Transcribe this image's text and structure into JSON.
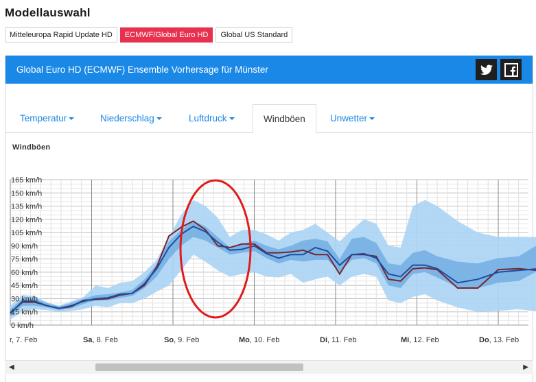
{
  "page": {
    "title": "Modellauswahl"
  },
  "models": [
    {
      "label": "Mitteleuropa Rapid Update HD",
      "active": false
    },
    {
      "label": "ECMWF/Global Euro HD",
      "active": true
    },
    {
      "label": "Global US Standard",
      "active": false
    }
  ],
  "panel": {
    "title": "Global Euro HD (ECMWF) Ensemble Vorhersage für Münster",
    "social": [
      "twitter-icon",
      "facebook-icon"
    ]
  },
  "tabs": [
    {
      "label": "Temperatur",
      "dropdown": true,
      "active": false
    },
    {
      "label": "Niederschlag",
      "dropdown": true,
      "active": false
    },
    {
      "label": "Luftdruck",
      "dropdown": true,
      "active": false
    },
    {
      "label": "Windböen",
      "dropdown": false,
      "active": true
    },
    {
      "label": "Unwetter",
      "dropdown": true,
      "active": false
    }
  ],
  "section": {
    "label": "Windböen"
  },
  "colors": {
    "header_blue": "#1a88e6",
    "active_model": "#e8314f",
    "band_outer": "#aad4f5",
    "band_mid": "#6ba8e0",
    "band_inner": "#4a7fb8",
    "median_line": "#1a4f9c",
    "control_line": "#7a2430",
    "annotation_ellipse": "#e01b1b"
  },
  "chart_data": {
    "type": "area",
    "ylabel_unit": "km/h",
    "ylim": [
      0,
      165
    ],
    "y_ticks": [
      "0 km/h",
      "15 km/h",
      "30 km/h",
      "45 km/h",
      "60 km/h",
      "75 km/h",
      "90 km/h",
      "105 km/h",
      "120 km/h",
      "135 km/h",
      "150 km/h",
      "165 km/h"
    ],
    "x_tick_labels": [
      {
        "day": "",
        "date": "r, 7. Feb"
      },
      {
        "day": "Sa",
        "date": ", 8. Feb"
      },
      {
        "day": "So",
        "date": ", 9. Feb"
      },
      {
        "day": "Mo",
        "date": ", 10. Feb"
      },
      {
        "day": "Di",
        "date": ", 11. Feb"
      },
      {
        "day": "Mi",
        "date": ", 12. Feb"
      },
      {
        "day": "Do",
        "date": ", 13. Feb"
      }
    ],
    "grid": true,
    "x_days": [
      0,
      0.15,
      0.3,
      0.45,
      0.6,
      0.75,
      0.9,
      1.05,
      1.2,
      1.35,
      1.5,
      1.65,
      1.8,
      1.95,
      2.1,
      2.25,
      2.4,
      2.55,
      2.7,
      2.85,
      3.0,
      3.15,
      3.3,
      3.45,
      3.6,
      3.75,
      3.9,
      4.05,
      4.2,
      4.35,
      4.5,
      4.65,
      4.8,
      4.95,
      5.1,
      5.25,
      5.5,
      5.75,
      6.0,
      6.25,
      6.5,
      6.65
    ],
    "series": [
      {
        "name": "max",
        "values": [
          22,
          34,
          33,
          26,
          22,
          27,
          32,
          45,
          42,
          48,
          50,
          60,
          74,
          100,
          125,
          142,
          135,
          122,
          100,
          108,
          108,
          103,
          96,
          105,
          108,
          115,
          105,
          95,
          108,
          120,
          115,
          90,
          88,
          135,
          142,
          135,
          118,
          105,
          100,
          100,
          100,
          100
        ]
      },
      {
        "name": "upper",
        "values": [
          18,
          30,
          30,
          25,
          21,
          25,
          30,
          34,
          35,
          37,
          40,
          52,
          69,
          95,
          108,
          118,
          112,
          100,
          88,
          92,
          96,
          90,
          86,
          90,
          96,
          98,
          95,
          75,
          98,
          100,
          93,
          70,
          68,
          82,
          85,
          78,
          72,
          70,
          76,
          78,
          92,
          90
        ]
      },
      {
        "name": "lower",
        "values": [
          10,
          22,
          22,
          20,
          17,
          19,
          24,
          28,
          28,
          31,
          33,
          42,
          55,
          75,
          90,
          100,
          96,
          88,
          80,
          82,
          84,
          76,
          70,
          74,
          72,
          74,
          74,
          60,
          74,
          76,
          70,
          45,
          42,
          58,
          60,
          54,
          43,
          42,
          48,
          50,
          62,
          60
        ]
      },
      {
        "name": "min",
        "values": [
          6,
          16,
          18,
          17,
          15,
          16,
          18,
          22,
          20,
          25,
          25,
          30,
          38,
          45,
          62,
          80,
          72,
          62,
          55,
          58,
          60,
          55,
          54,
          58,
          48,
          52,
          55,
          45,
          55,
          58,
          55,
          28,
          25,
          32,
          35,
          28,
          20,
          15,
          16,
          18,
          15,
          15
        ]
      },
      {
        "name": "median",
        "values": [
          13,
          27,
          27,
          22,
          19,
          22,
          27,
          30,
          31,
          35,
          36,
          47,
          64,
          88,
          103,
          112,
          106,
          94,
          85,
          86,
          90,
          81,
          76,
          80,
          80,
          88,
          84,
          68,
          80,
          81,
          76,
          58,
          55,
          68,
          68,
          64,
          48,
          52,
          60,
          62,
          64,
          62
        ]
      },
      {
        "name": "control",
        "values": [
          14,
          26,
          26,
          22,
          19,
          21,
          28,
          29,
          30,
          34,
          36,
          45,
          66,
          101,
          111,
          118,
          108,
          90,
          88,
          92,
          92,
          82,
          82,
          83,
          85,
          80,
          80,
          58,
          80,
          80,
          78,
          52,
          50,
          64,
          65,
          63,
          42,
          42,
          63,
          64,
          62,
          62
        ]
      }
    ],
    "annotation": "red-ellipse"
  },
  "scrollbar": {
    "left_arrow": "◀",
    "right_arrow": "▶"
  }
}
